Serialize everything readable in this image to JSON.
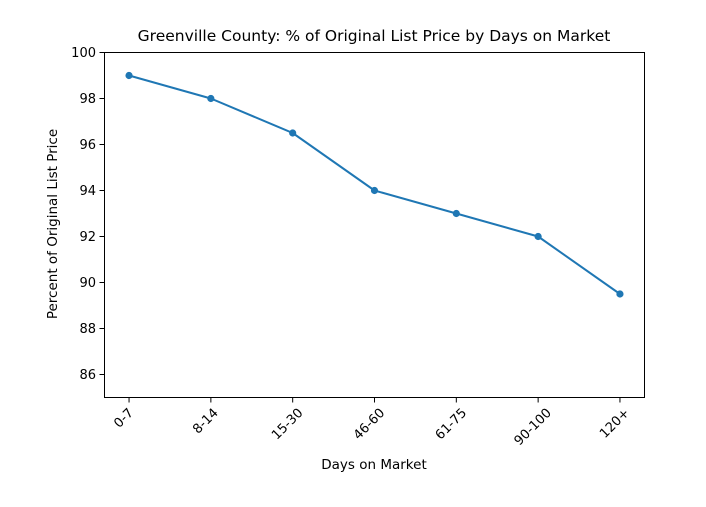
{
  "chart_data": {
    "type": "line",
    "title": "Greenville County: % of Original List Price by Days on Market",
    "xlabel": "Days on Market",
    "ylabel": "Percent of Original List Price",
    "categories": [
      "0-7",
      "8-14",
      "15-30",
      "46-60",
      "61-75",
      "90-100",
      "120+"
    ],
    "values": [
      99.0,
      98.0,
      96.5,
      94.0,
      93.0,
      92.0,
      89.5
    ],
    "ylim": [
      85,
      100
    ],
    "yticks": [
      86,
      88,
      90,
      92,
      94,
      96,
      98,
      100
    ],
    "x_tick_rotation": 45,
    "grid": false,
    "legend": "none",
    "line_color": "#1f77b4",
    "marker": "circle",
    "axis_color": "#000000",
    "background_color": "#ffffff"
  }
}
